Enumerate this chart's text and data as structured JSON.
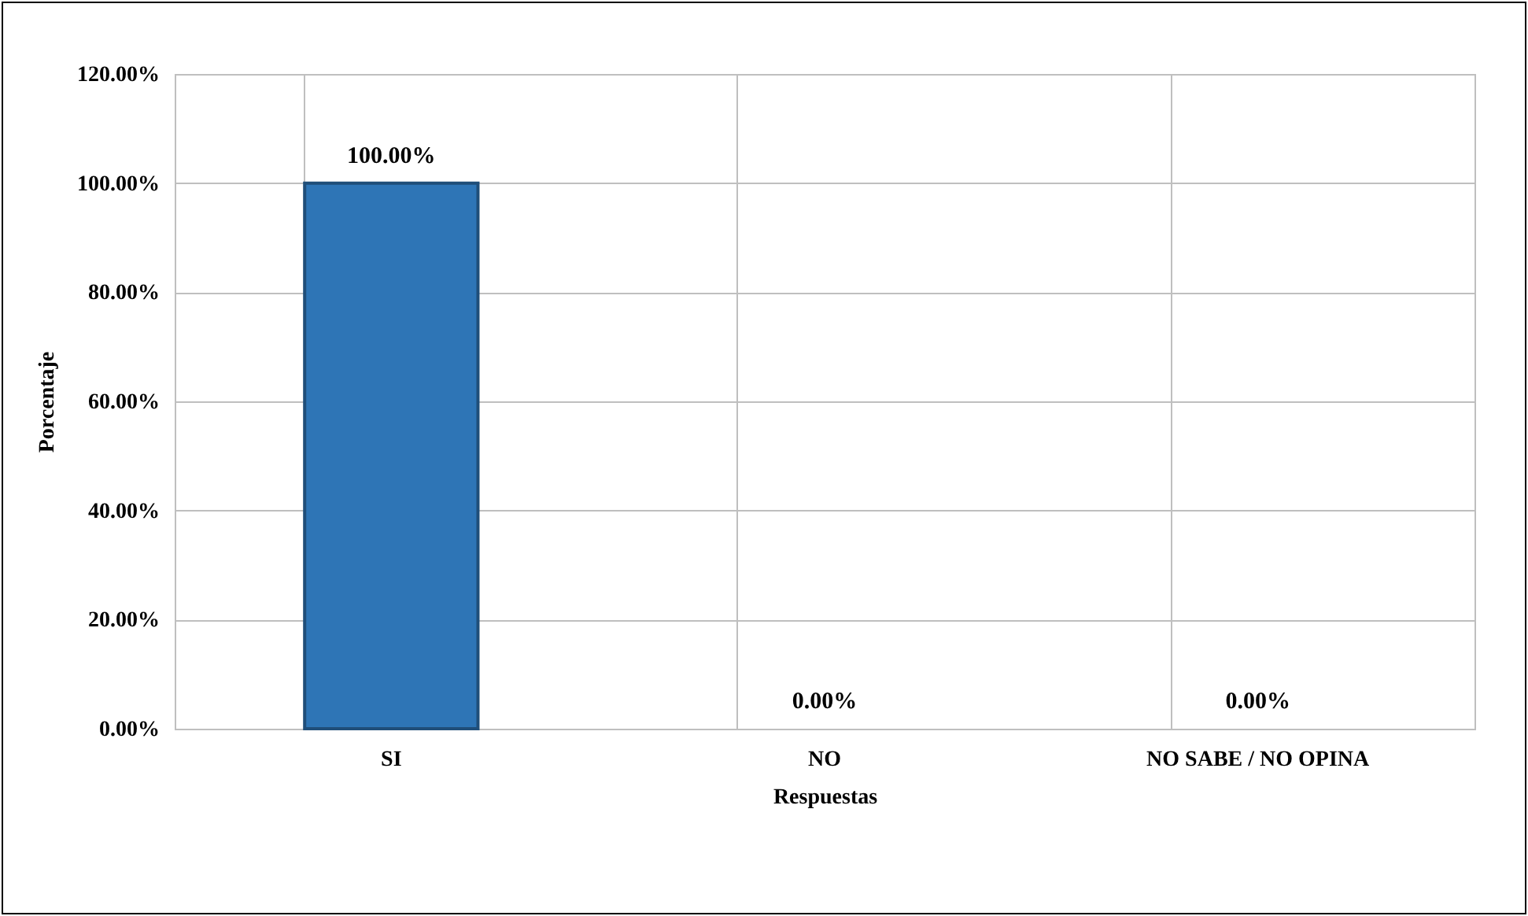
{
  "chart_data": {
    "type": "bar",
    "xlabel": "Respuestas",
    "ylabel": "Porcentaje",
    "categories": [
      "SI",
      "NO",
      "NO SABE / NO OPINA"
    ],
    "values": [
      100,
      0,
      0
    ],
    "value_labels": [
      "100.00%",
      "0.00%",
      "0.00%"
    ],
    "color": "#2e75b6",
    "ylim": [
      0,
      120
    ],
    "yticks": [
      {
        "value": 0,
        "label": "0.00%"
      },
      {
        "value": 20,
        "label": "20.00%"
      },
      {
        "value": 40,
        "label": "40.00%"
      },
      {
        "value": 60,
        "label": "60.00%"
      },
      {
        "value": 80,
        "label": "80.00%"
      },
      {
        "value": 100,
        "label": "100.00%"
      },
      {
        "value": 120,
        "label": "120.00%"
      }
    ],
    "grid": true
  }
}
